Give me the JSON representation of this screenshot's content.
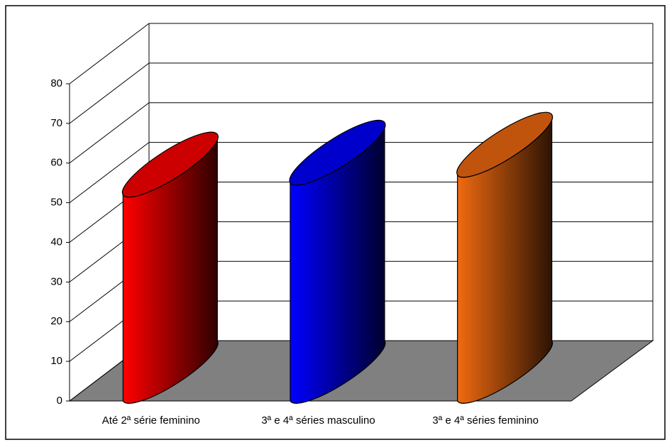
{
  "chart_data": {
    "type": "bar",
    "categories": [
      "Até 2ª série feminino",
      "3ª e 4ª séries masculino",
      "3ª e 4ª séries feminino"
    ],
    "values": [
      52,
      55,
      57
    ],
    "colors": [
      "#ff0000",
      "#0000ff",
      "#f06a10"
    ],
    "ylim": [
      0,
      80
    ],
    "yticks": [
      0,
      10,
      20,
      30,
      40,
      50,
      60,
      70,
      80
    ],
    "grid": true
  }
}
